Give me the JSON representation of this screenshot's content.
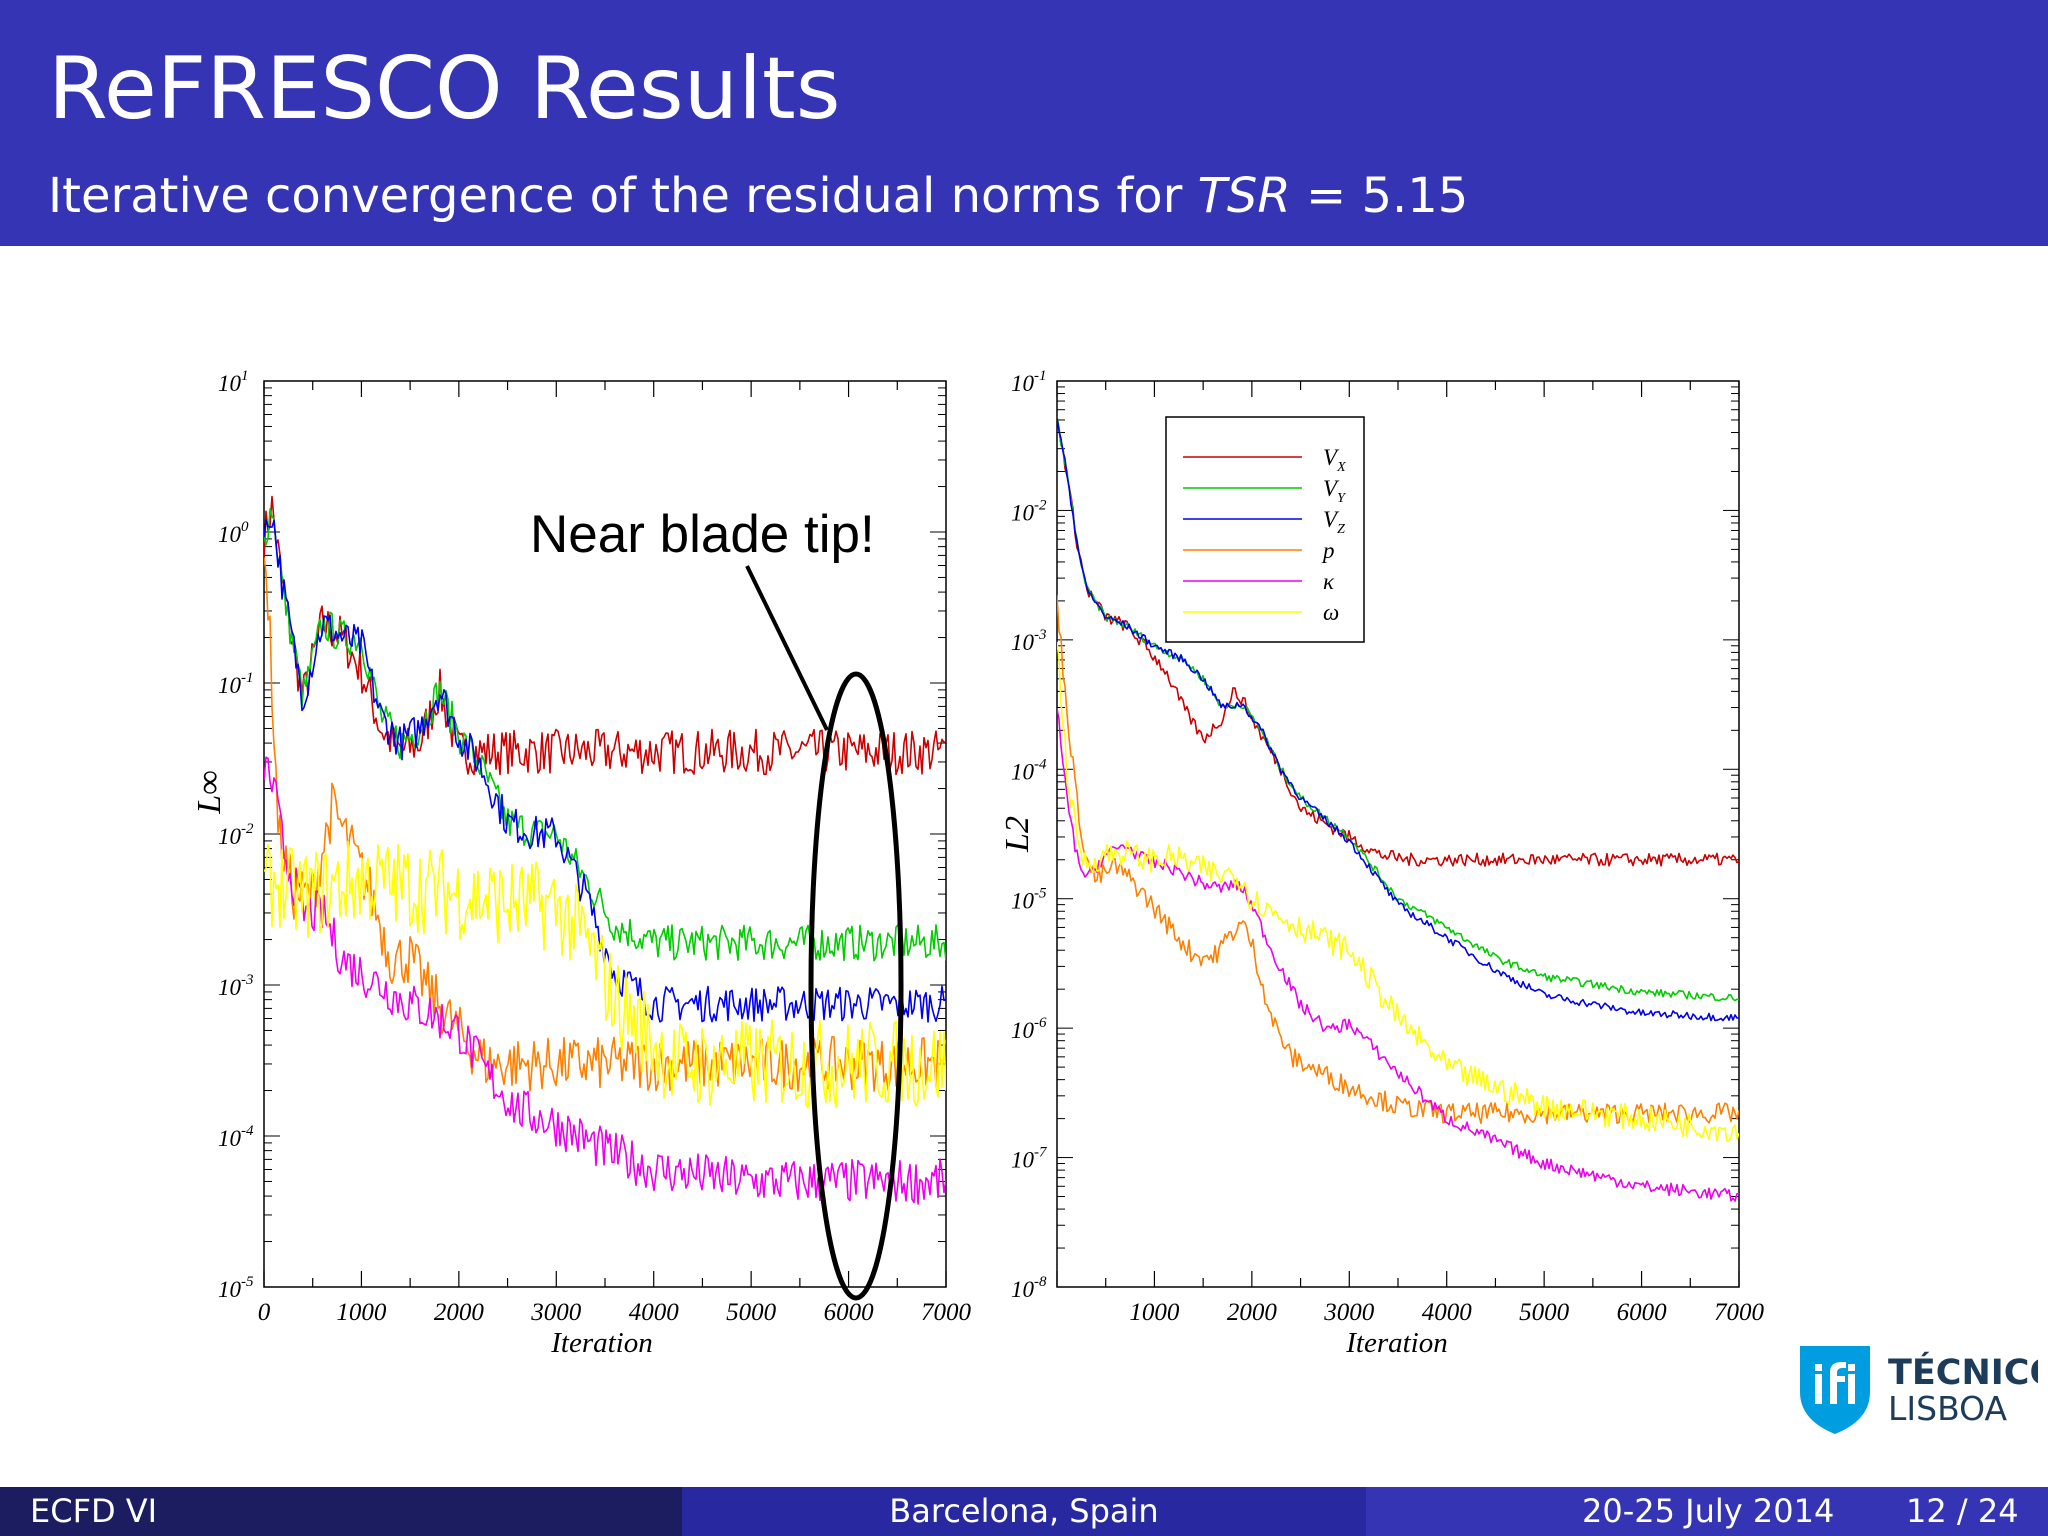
{
  "slide": {
    "title": "ReFRESCO Results",
    "subtitle_text": "Iterative convergence of the residual norms for ",
    "subtitle_math_var": "TSR",
    "subtitle_math_rest": " = 5.15"
  },
  "footer": {
    "left": "ECFD VI",
    "center": "Barcelona, Spain",
    "date": "20-25 July 2014",
    "page": "12 / 24"
  },
  "logo": {
    "line1": "TÉCNICO",
    "line2": "LISBOA"
  },
  "annotation": {
    "text": "Near blade tip!"
  },
  "colors": {
    "Vx": "#cc0000",
    "Vy": "#00cc00",
    "Vz": "#0000ee",
    "p": "#ff8000",
    "k": "#ee00ee",
    "w": "#ffff00",
    "header": "#3434b4"
  },
  "chart_data": [
    {
      "type": "line",
      "xlabel": "Iteration",
      "ylabel": "L∞",
      "yscale": "log",
      "xlim": [
        0,
        7000
      ],
      "ylim": [
        1e-05,
        10
      ],
      "xticks": [
        "0",
        "1000",
        "2000",
        "3000",
        "4000",
        "5000",
        "6000",
        "7000"
      ],
      "yticks": [
        {
          "base": "10",
          "exp": "-5"
        },
        {
          "base": "10",
          "exp": "-4"
        },
        {
          "base": "10",
          "exp": "-3"
        },
        {
          "base": "10",
          "exp": "-2"
        },
        {
          "base": "10",
          "exp": "-1"
        },
        {
          "base": "10",
          "exp": "0"
        },
        {
          "base": "10",
          "exp": "1"
        }
      ],
      "series": [
        {
          "key": "Vx",
          "x": [
            0,
            80,
            200,
            400,
            600,
            800,
            1000,
            1200,
            1400,
            1600,
            1800,
            2000,
            2200,
            3000,
            4000,
            5000,
            6000,
            7000
          ],
          "y": [
            0.9,
            1.5,
            0.4,
            0.08,
            0.25,
            0.2,
            0.12,
            0.05,
            0.035,
            0.04,
            0.09,
            0.035,
            0.035,
            0.035,
            0.035,
            0.035,
            0.035,
            0.035
          ],
          "noise": 0.15
        },
        {
          "key": "Vy",
          "x": [
            0,
            80,
            200,
            400,
            600,
            800,
            1000,
            1200,
            1400,
            1600,
            1800,
            2000,
            2200,
            2500,
            2800,
            3000,
            3300,
            3600,
            4000,
            5000,
            6000,
            7000
          ],
          "y": [
            0.9,
            1.5,
            0.4,
            0.08,
            0.25,
            0.2,
            0.2,
            0.06,
            0.04,
            0.05,
            0.09,
            0.045,
            0.03,
            0.012,
            0.01,
            0.01,
            0.005,
            0.0025,
            0.0019,
            0.0019,
            0.0019,
            0.0019
          ],
          "noise": 0.12
        },
        {
          "key": "Vz",
          "x": [
            0,
            80,
            200,
            400,
            600,
            800,
            1000,
            1200,
            1400,
            1600,
            1800,
            2000,
            2200,
            2500,
            2800,
            3000,
            3300,
            3600,
            4000,
            5000,
            6000,
            7000
          ],
          "y": [
            0.9,
            1.4,
            0.4,
            0.08,
            0.25,
            0.2,
            0.18,
            0.06,
            0.04,
            0.05,
            0.09,
            0.045,
            0.03,
            0.012,
            0.01,
            0.01,
            0.004,
            0.0012,
            0.00075,
            0.00075,
            0.00075,
            0.00075
          ],
          "noise": 0.12
        },
        {
          "key": "p",
          "x": [
            0,
            60,
            150,
            300,
            500,
            700,
            900,
            1100,
            1300,
            1500,
            1700,
            1900,
            2100,
            2300,
            3000,
            4000,
            5000,
            6000,
            7000
          ],
          "y": [
            1.0,
            0.2,
            0.01,
            0.004,
            0.004,
            0.015,
            0.008,
            0.004,
            0.0015,
            0.0015,
            0.0009,
            0.0006,
            0.0004,
            0.0003,
            0.0003,
            0.0003,
            0.0003,
            0.0003,
            0.0003
          ],
          "noise": 0.18
        },
        {
          "key": "k",
          "x": [
            0,
            100,
            200,
            400,
            600,
            800,
            1000,
            1200,
            1400,
            1600,
            1800,
            2000,
            2300,
            2600,
            3000,
            3500,
            4000,
            5000,
            6000,
            7000
          ],
          "y": [
            0.03,
            0.02,
            0.008,
            0.003,
            0.003,
            0.0015,
            0.0012,
            0.001,
            0.0008,
            0.0007,
            0.0006,
            0.0005,
            0.00025,
            0.00015,
            0.00012,
            8e-05,
            6e-05,
            5e-05,
            5e-05,
            5e-05
          ],
          "noise": 0.15
        },
        {
          "key": "w",
          "x": [
            0,
            120,
            300,
            500,
            1000,
            1500,
            2000,
            2500,
            3000,
            3300,
            3600,
            3900,
            4200,
            5000,
            6000,
            7000
          ],
          "y": [
            0.004,
            0.005,
            0.004,
            0.004,
            0.005,
            0.0045,
            0.004,
            0.0035,
            0.0033,
            0.002,
            0.0008,
            0.0005,
            0.0003,
            0.0003,
            0.0003,
            0.0003
          ],
          "noise": 0.3
        }
      ]
    },
    {
      "type": "line",
      "xlabel": "Iteration",
      "ylabel": "L2",
      "yscale": "log",
      "xlim": [
        0,
        7000
      ],
      "ylim": [
        1e-08,
        0.1
      ],
      "xticks": [
        "1000",
        "2000",
        "3000",
        "4000",
        "5000",
        "6000",
        "7000"
      ],
      "yticks": [
        {
          "base": "10",
          "exp": "-8"
        },
        {
          "base": "10",
          "exp": "-7"
        },
        {
          "base": "10",
          "exp": "-6"
        },
        {
          "base": "10",
          "exp": "-5"
        },
        {
          "base": "10",
          "exp": "-4"
        },
        {
          "base": "10",
          "exp": "-3"
        },
        {
          "base": "10",
          "exp": "-2"
        },
        {
          "base": "10",
          "exp": "-1"
        }
      ],
      "legend": {
        "position": "top-left",
        "entries": [
          {
            "key": "Vx",
            "var": "V",
            "sub": "X"
          },
          {
            "key": "Vy",
            "var": "V",
            "sub": "Y"
          },
          {
            "key": "Vz",
            "var": "V",
            "sub": "Z"
          },
          {
            "key": "p",
            "var": "p",
            "sub": ""
          },
          {
            "key": "k",
            "var": "κ",
            "sub": ""
          },
          {
            "key": "w",
            "var": "ω",
            "sub": ""
          }
        ]
      },
      "series": [
        {
          "key": "Vx",
          "x": [
            0,
            100,
            200,
            300,
            500,
            700,
            900,
            1100,
            1300,
            1500,
            1700,
            1800,
            1900,
            2100,
            2300,
            2500,
            2700,
            3000,
            3300,
            3600,
            4000,
            5000,
            6000,
            7000
          ],
          "y": [
            0.05,
            0.02,
            0.006,
            0.0025,
            0.0015,
            0.0013,
            0.0009,
            0.0006,
            0.0003,
            0.00017,
            0.00025,
            0.0004,
            0.00035,
            0.00018,
            0.0001,
            5e-05,
            4e-05,
            3e-05,
            2.2e-05,
            2e-05,
            2e-05,
            2e-05,
            2e-05,
            2e-05
          ],
          "noise": 0.05
        },
        {
          "key": "Vy",
          "x": [
            0,
            100,
            200,
            300,
            500,
            700,
            1000,
            1300,
            1500,
            1700,
            1900,
            2100,
            2300,
            2500,
            3000,
            3500,
            4000,
            4500,
            5000,
            6000,
            7000
          ],
          "y": [
            0.05,
            0.02,
            0.006,
            0.0025,
            0.0015,
            0.0013,
            0.0009,
            0.0007,
            0.0005,
            0.0003,
            0.00032,
            0.0002,
            0.0001,
            6e-05,
            3e-05,
            1e-05,
            6e-06,
            3.5e-06,
            2.5e-06,
            1.9e-06,
            1.7e-06
          ],
          "noise": 0.03
        },
        {
          "key": "Vz",
          "x": [
            0,
            100,
            200,
            300,
            500,
            700,
            1000,
            1300,
            1500,
            1700,
            1900,
            2100,
            2300,
            2500,
            3000,
            3500,
            4000,
            4500,
            5000,
            6000,
            7000
          ],
          "y": [
            0.05,
            0.02,
            0.006,
            0.0025,
            0.0015,
            0.0013,
            0.0009,
            0.0007,
            0.0005,
            0.0003,
            0.00032,
            0.0002,
            0.0001,
            6e-05,
            2.8e-05,
            9e-06,
            5e-06,
            2.8e-06,
            1.8e-06,
            1.3e-06,
            1.2e-06
          ],
          "noise": 0.03
        },
        {
          "key": "p",
          "x": [
            0,
            100,
            200,
            300,
            400,
            600,
            800,
            1000,
            1200,
            1400,
            1600,
            1800,
            1900,
            2000,
            2200,
            2400,
            2600,
            3000,
            3500,
            4000,
            5000,
            6000,
            7000
          ],
          "y": [
            0.002,
            0.0003,
            6e-05,
            2e-05,
            1.4e-05,
            1.8e-05,
            1.3e-05,
            8.5e-06,
            5.5e-06,
            3.7e-06,
            3.5e-06,
            5.5e-06,
            6.5e-06,
            4.5e-06,
            1.2e-06,
            6e-07,
            5e-07,
            3.5e-07,
            2.5e-07,
            2.2e-07,
            2.2e-07,
            2.2e-07,
            2.2e-07
          ],
          "noise": 0.08
        },
        {
          "key": "k",
          "x": [
            0,
            100,
            200,
            300,
            500,
            700,
            900,
            1200,
            1500,
            1700,
            1800,
            1900,
            2000,
            2200,
            2500,
            2800,
            3000,
            3500,
            4000,
            5000,
            6000,
            7000
          ],
          "y": [
            0.0003,
            6e-05,
            2.2e-05,
            1.4e-05,
            2.2e-05,
            2.6e-05,
            2e-05,
            1.7e-05,
            1.3e-05,
            1.2e-05,
            1.3e-05,
            1.2e-05,
            9e-06,
            4e-06,
            1.5e-06,
            9.5e-07,
            1.1e-06,
            4.5e-07,
            2e-07,
            9e-08,
            6e-08,
            5e-08
          ],
          "noise": 0.05
        },
        {
          "key": "w",
          "x": [
            0,
            100,
            200,
            300,
            500,
            700,
            900,
            1200,
            1500,
            1700,
            1800,
            1900,
            2000,
            2200,
            2500,
            3000,
            3500,
            4000,
            4500,
            5000,
            6000,
            7000
          ],
          "y": [
            0.001,
            0.0001,
            3e-05,
            1.8e-05,
            2.2e-05,
            2.3e-05,
            2e-05,
            2.1e-05,
            1.7e-05,
            1.5e-05,
            1.6e-05,
            1.4e-05,
            1e-05,
            8e-06,
            6e-06,
            4e-06,
            1.2e-06,
            5e-07,
            3.5e-07,
            2.5e-07,
            2e-07,
            1.6e-07
          ],
          "noise": 0.1
        }
      ]
    }
  ]
}
